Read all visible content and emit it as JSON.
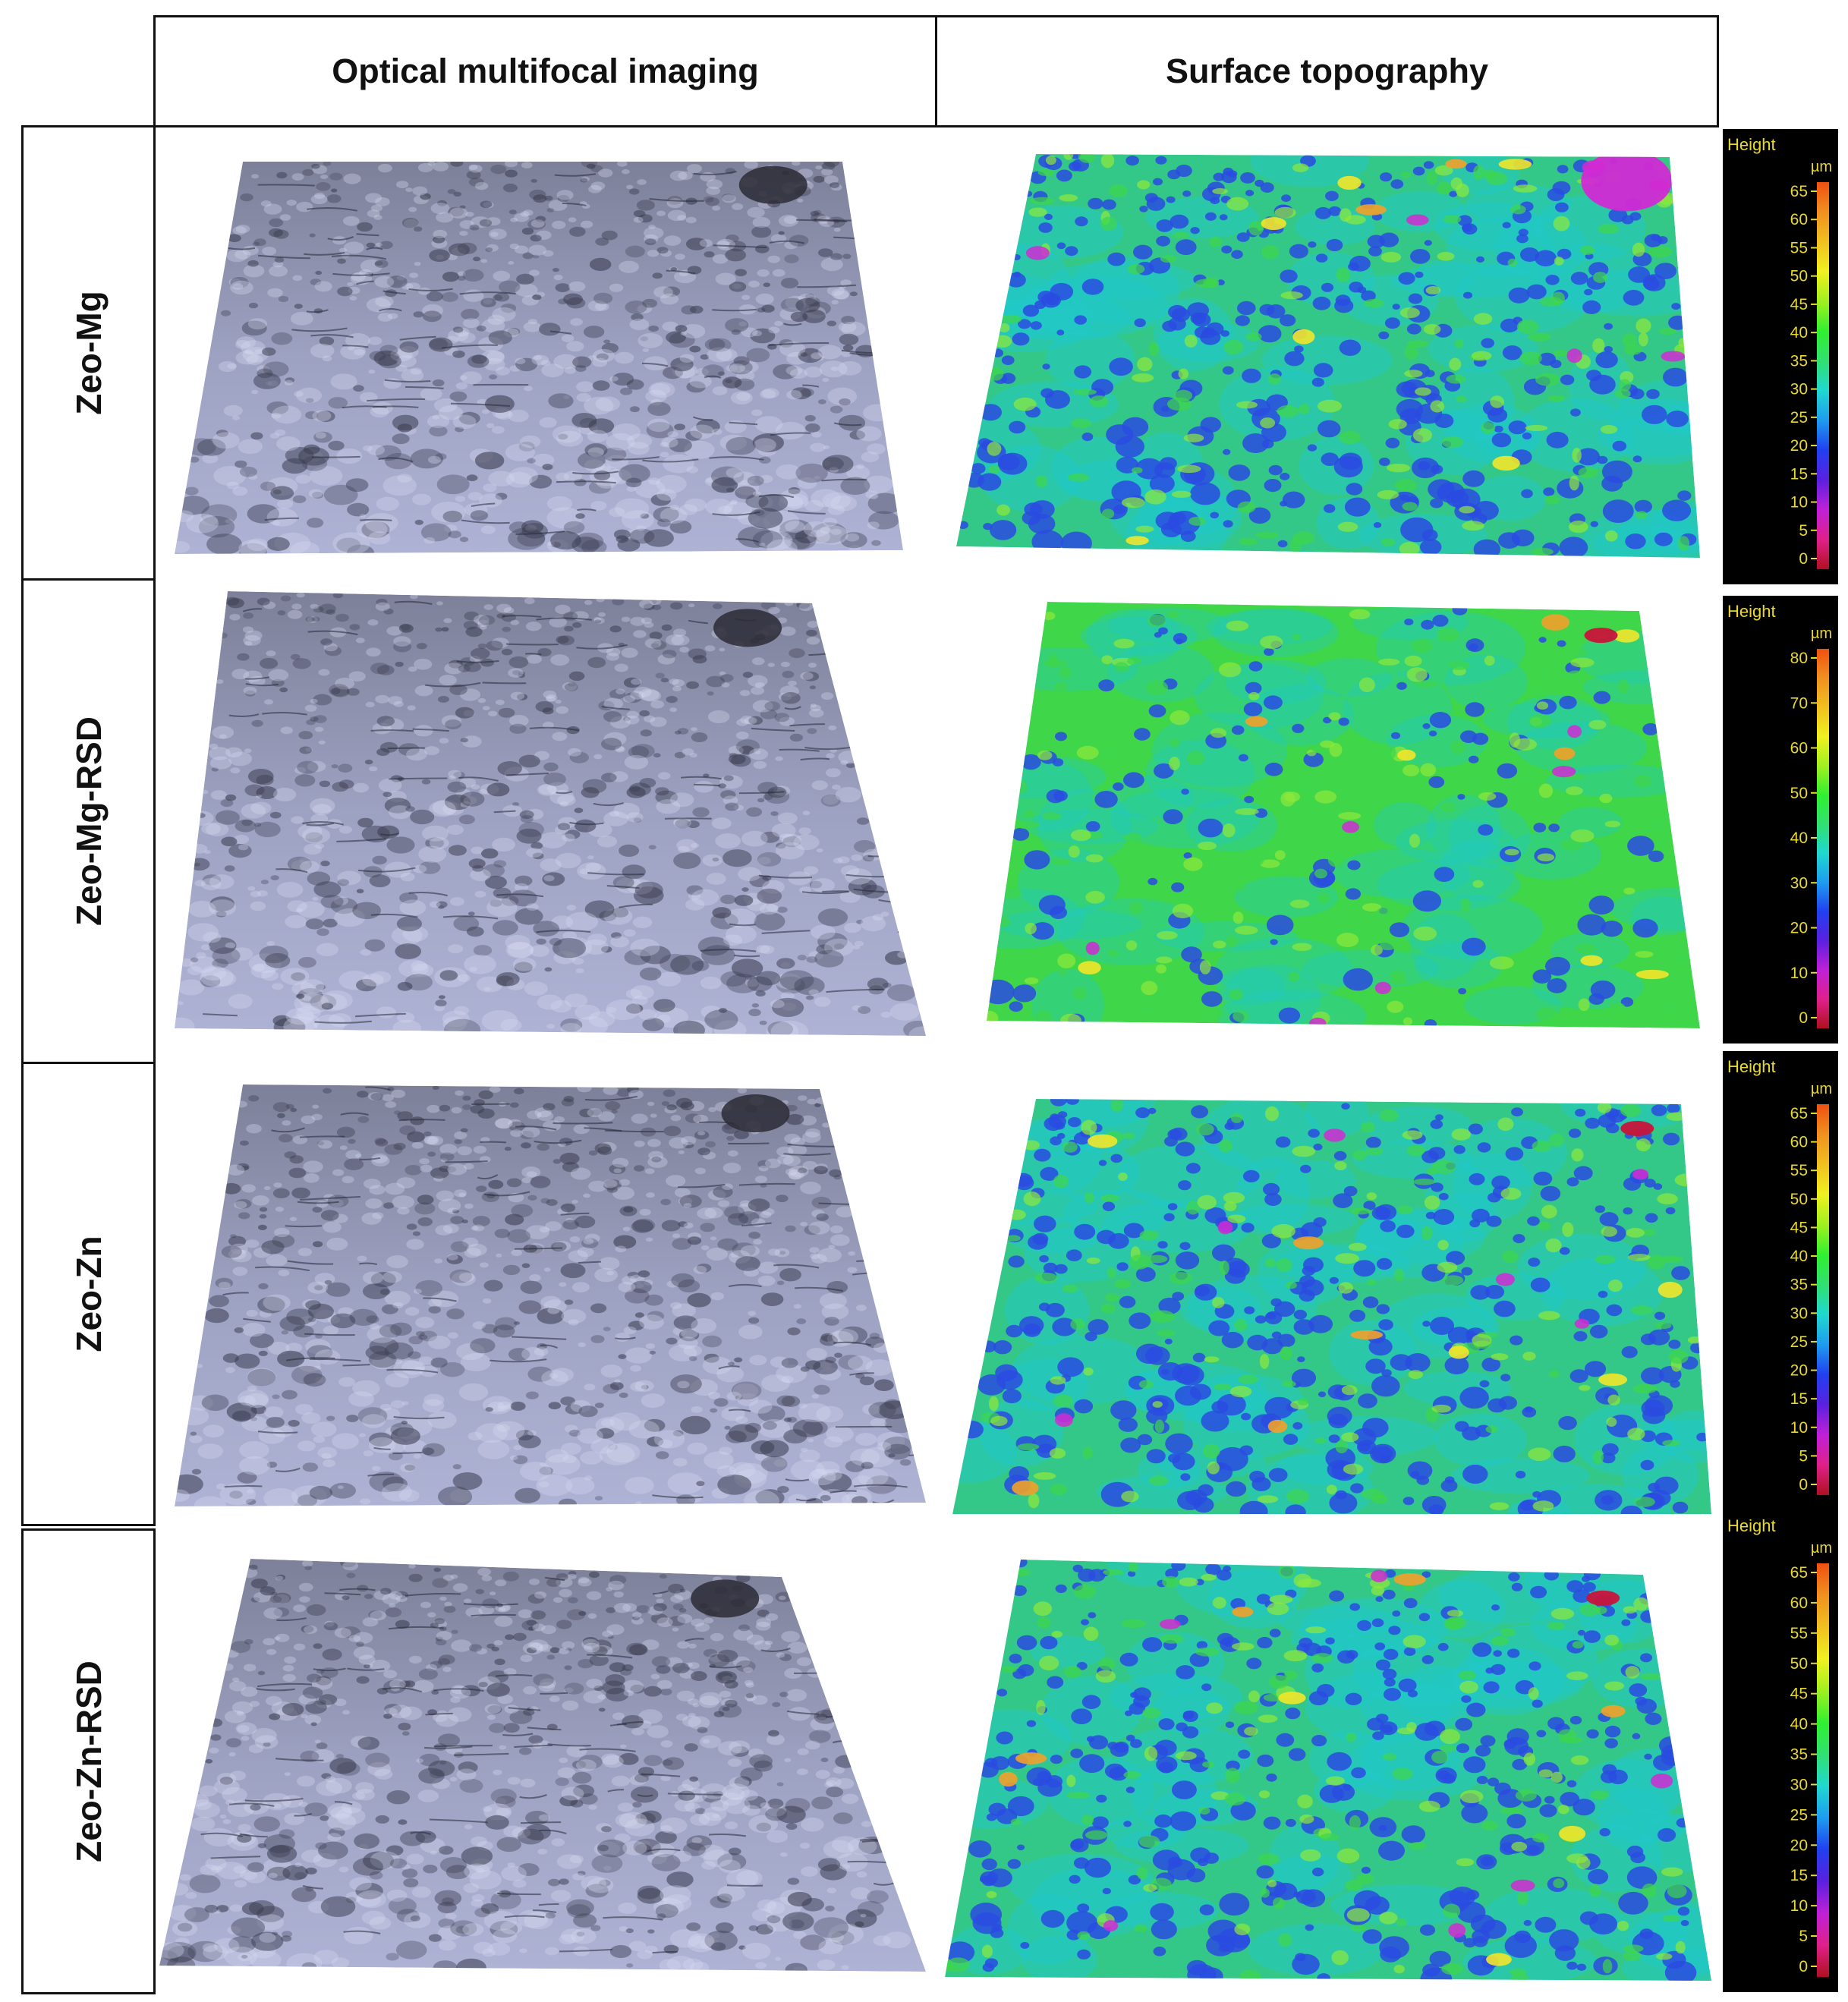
{
  "headers": {
    "optical": "Optical multifocal imaging",
    "topography": "Surface topography"
  },
  "rows": [
    {
      "label": "Zeo-Mg",
      "scale": {
        "title": "Height",
        "unit": "µm",
        "ticks": [
          "65",
          "60",
          "55",
          "50",
          "45",
          "40",
          "35",
          "30",
          "25",
          "20",
          "15",
          "10",
          "5",
          "0"
        ],
        "max": 65
      }
    },
    {
      "label": "Zeo-Mg-RSD",
      "scale": {
        "title": "Height",
        "unit": "µm",
        "ticks": [
          "80",
          "70",
          "60",
          "50",
          "40",
          "30",
          "20",
          "10",
          "0"
        ],
        "max": 80
      }
    },
    {
      "label": "Zeo-Zn",
      "scale": {
        "title": "Height",
        "unit": "µm",
        "ticks": [
          "65",
          "60",
          "55",
          "50",
          "45",
          "40",
          "35",
          "30",
          "25",
          "20",
          "15",
          "10",
          "5",
          "0"
        ],
        "max": 65
      }
    },
    {
      "label": "Zeo-Zn-RSD",
      "scale": {
        "title": "Height",
        "unit": "µm",
        "ticks": [
          "65",
          "60",
          "55",
          "50",
          "45",
          "40",
          "35",
          "30",
          "25",
          "20",
          "15",
          "10",
          "5",
          "0"
        ],
        "max": 65
      }
    }
  ],
  "colors": {
    "optical_base": "#9ea2c2",
    "topo_green": "#3fd64a",
    "topo_cyan": "#1fc8c8",
    "topo_blue": "#2a4be0",
    "topo_magenta": "#d12ad4",
    "scale_text": "#e8d830",
    "scale_bg": "#000000"
  }
}
